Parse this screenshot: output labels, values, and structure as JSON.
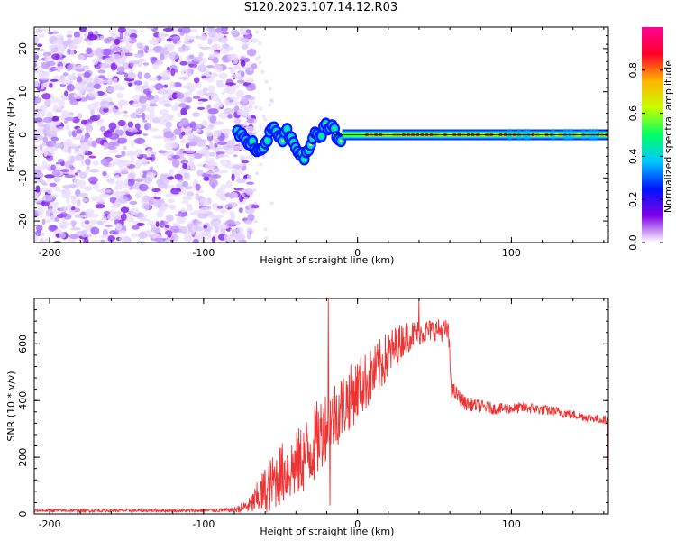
{
  "figure_title": "S120.2023.107.14.12.R03",
  "chart_data": [
    {
      "type": "heatmap",
      "title": "S120.2023.107.14.12.R03",
      "xlabel": "Height of straight line (km)",
      "ylabel": "Frequency (Hz)",
      "xlim": [
        -210,
        163
      ],
      "ylim": [
        -25,
        25
      ],
      "x_ticks": [
        -200,
        -100,
        0,
        100
      ],
      "y_ticks": [
        -20,
        -10,
        0,
        10,
        20
      ],
      "noise_region_km": [
        -210,
        -75
      ],
      "transition_region_km": [
        -75,
        -15
      ],
      "carrier_frequency_hz": 0,
      "frequency_track": [
        {
          "x": -78,
          "f": 0
        },
        {
          "x": -72,
          "f": -1
        },
        {
          "x": -66,
          "f": -3
        },
        {
          "x": -60,
          "f": -2
        },
        {
          "x": -56,
          "f": 2
        },
        {
          "x": -50,
          "f": -1
        },
        {
          "x": -45,
          "f": 1
        },
        {
          "x": -42,
          "f": -2
        },
        {
          "x": -38,
          "f": -4
        },
        {
          "x": -34,
          "f": -5
        },
        {
          "x": -30,
          "f": -1
        },
        {
          "x": -25,
          "f": 0
        },
        {
          "x": -20,
          "f": 2
        },
        {
          "x": -15,
          "f": 1
        },
        {
          "x": -10,
          "f": -1
        },
        {
          "x": 0,
          "f": 0
        },
        {
          "x": 163,
          "f": 0
        }
      ]
    },
    {
      "type": "line",
      "title": "",
      "xlabel": "Height of straight line (km)",
      "ylabel": "SNR (10 * v/v)",
      "xlim": [
        -210,
        163
      ],
      "ylim": [
        0,
        760
      ],
      "x_ticks": [
        -200,
        -100,
        0,
        100
      ],
      "y_ticks": [
        0,
        200,
        400,
        600
      ],
      "color": "#ee3333",
      "envelope": [
        {
          "x": -210,
          "mean": 12,
          "amp": 6
        },
        {
          "x": -100,
          "mean": 12,
          "amp": 6
        },
        {
          "x": -80,
          "mean": 14,
          "amp": 8
        },
        {
          "x": -70,
          "mean": 30,
          "amp": 30
        },
        {
          "x": -60,
          "mean": 80,
          "amp": 90
        },
        {
          "x": -50,
          "mean": 140,
          "amp": 110
        },
        {
          "x": -40,
          "mean": 170,
          "amp": 120
        },
        {
          "x": -30,
          "mean": 230,
          "amp": 140
        },
        {
          "x": -20,
          "mean": 320,
          "amp": 130
        },
        {
          "x": -10,
          "mean": 380,
          "amp": 120
        },
        {
          "x": 0,
          "mean": 440,
          "amp": 110
        },
        {
          "x": 10,
          "mean": 490,
          "amp": 100
        },
        {
          "x": 20,
          "mean": 560,
          "amp": 90
        },
        {
          "x": 30,
          "mean": 620,
          "amp": 60
        },
        {
          "x": 40,
          "mean": 640,
          "amp": 45
        },
        {
          "x": 50,
          "mean": 650,
          "amp": 40
        },
        {
          "x": 59,
          "mean": 645,
          "amp": 40
        },
        {
          "x": 61,
          "mean": 440,
          "amp": 30
        },
        {
          "x": 70,
          "mean": 390,
          "amp": 25
        },
        {
          "x": 90,
          "mean": 370,
          "amp": 20
        },
        {
          "x": 110,
          "mean": 375,
          "amp": 20
        },
        {
          "x": 130,
          "mean": 360,
          "amp": 18
        },
        {
          "x": 150,
          "mean": 340,
          "amp": 15
        },
        {
          "x": 163,
          "mean": 330,
          "amp": 15
        }
      ],
      "spikes": [
        {
          "x": -19,
          "y": 760
        },
        {
          "x": -18,
          "y": 30
        },
        {
          "x": 40,
          "y": 760
        }
      ]
    }
  ],
  "colorbar": {
    "label": "Normalized spectral amplitude",
    "range": [
      0,
      1
    ],
    "ticks": [
      "0.0",
      "0.2",
      "0.4",
      "0.6",
      "0.8"
    ],
    "tick_values": [
      0.0,
      0.2,
      0.4,
      0.6,
      0.8
    ],
    "colors": [
      "#ffffff",
      "#7e00e6",
      "#0014ff",
      "#00c8ff",
      "#00ff64",
      "#c8ff00",
      "#ffb400",
      "#ff0028",
      "#ff0096"
    ]
  }
}
